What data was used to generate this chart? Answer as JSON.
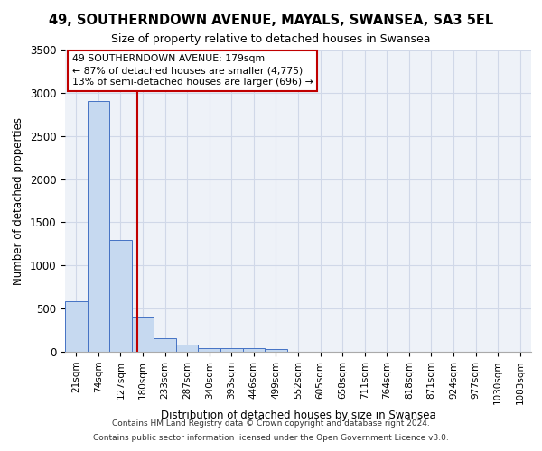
{
  "title": "49, SOUTHERNDOWN AVENUE, MAYALS, SWANSEA, SA3 5EL",
  "subtitle": "Size of property relative to detached houses in Swansea",
  "xlabel": "Distribution of detached houses by size in Swansea",
  "ylabel": "Number of detached properties",
  "footer_line1": "Contains HM Land Registry data © Crown copyright and database right 2024.",
  "footer_line2": "Contains public sector information licensed under the Open Government Licence v3.0.",
  "bin_labels": [
    "21sqm",
    "74sqm",
    "127sqm",
    "180sqm",
    "233sqm",
    "287sqm",
    "340sqm",
    "393sqm",
    "446sqm",
    "499sqm",
    "552sqm",
    "605sqm",
    "658sqm",
    "711sqm",
    "764sqm",
    "818sqm",
    "871sqm",
    "924sqm",
    "977sqm",
    "1030sqm",
    "1083sqm"
  ],
  "bar_values": [
    580,
    2900,
    1300,
    410,
    155,
    80,
    45,
    45,
    40,
    35,
    0,
    0,
    0,
    0,
    0,
    0,
    0,
    0,
    0,
    0,
    0
  ],
  "bar_color": "#c6d9f0",
  "bar_edge_color": "#4472c4",
  "grid_color": "#d0d8e8",
  "background_color": "#eef2f8",
  "annotation_text": "49 SOUTHERNDOWN AVENUE: 179sqm\n← 87% of detached houses are smaller (4,775)\n13% of semi-detached houses are larger (696) →",
  "annotation_box_color": "white",
  "annotation_border_color": "#c00000",
  "vline_x": 2.74,
  "vline_color": "#c00000",
  "ylim": [
    0,
    3500
  ],
  "yticks": [
    0,
    500,
    1000,
    1500,
    2000,
    2500,
    3000,
    3500
  ]
}
